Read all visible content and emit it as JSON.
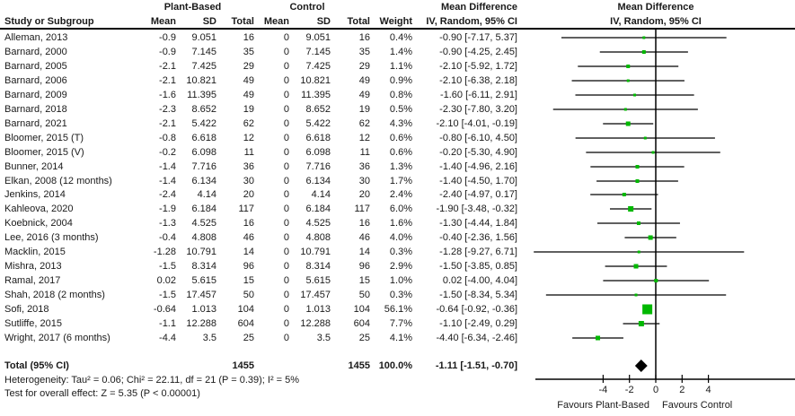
{
  "table": {
    "group_headers": {
      "plant_based": "Plant-Based",
      "control": "Control",
      "md_text_col": "Mean Difference",
      "md_plot_col": "Mean Difference"
    },
    "column_headers": {
      "study": "Study or Subgroup",
      "mean": "Mean",
      "sd": "SD",
      "total": "Total",
      "c_mean": "Mean",
      "c_sd": "SD",
      "c_total": "Total",
      "weight": "Weight",
      "md_sub_text": "IV, Random, 95% CI",
      "md_sub_plot": "IV, Random, 95% CI"
    }
  },
  "chart_data": {
    "type": "forest",
    "effect_measure": "Mean Difference",
    "model": "IV, Random, 95% CI",
    "x_axis": {
      "ticks": [
        -4,
        -2,
        0,
        2,
        4
      ],
      "favours_left": "Favours Plant-Based",
      "favours_right": "Favours Control"
    },
    "studies": [
      {
        "label": "Alleman, 2013",
        "mean": "-0.9",
        "sd": "9.051",
        "total": "16",
        "c_mean": "0",
        "c_sd": "9.051",
        "c_total": "16",
        "weight": "0.4%",
        "md_label": "-0.90 [-7.17, 5.37]",
        "md": -0.9,
        "lo": -7.17,
        "hi": 5.37,
        "w": 0.4
      },
      {
        "label": "Barnard, 2000",
        "mean": "-0.9",
        "sd": "7.145",
        "total": "35",
        "c_mean": "0",
        "c_sd": "7.145",
        "c_total": "35",
        "weight": "1.4%",
        "md_label": "-0.90 [-4.25, 2.45]",
        "md": -0.9,
        "lo": -4.25,
        "hi": 2.45,
        "w": 1.4
      },
      {
        "label": "Barnard, 2005",
        "mean": "-2.1",
        "sd": "7.425",
        "total": "29",
        "c_mean": "0",
        "c_sd": "7.425",
        "c_total": "29",
        "weight": "1.1%",
        "md_label": "-2.10 [-5.92, 1.72]",
        "md": -2.1,
        "lo": -5.92,
        "hi": 1.72,
        "w": 1.1
      },
      {
        "label": "Barnard, 2006",
        "mean": "-2.1",
        "sd": "10.821",
        "total": "49",
        "c_mean": "0",
        "c_sd": "10.821",
        "c_total": "49",
        "weight": "0.9%",
        "md_label": "-2.10 [-6.38, 2.18]",
        "md": -2.1,
        "lo": -6.38,
        "hi": 2.18,
        "w": 0.9
      },
      {
        "label": "Barnard, 2009",
        "mean": "-1.6",
        "sd": "11.395",
        "total": "49",
        "c_mean": "0",
        "c_sd": "11.395",
        "c_total": "49",
        "weight": "0.8%",
        "md_label": "-1.60 [-6.11, 2.91]",
        "md": -1.6,
        "lo": -6.11,
        "hi": 2.91,
        "w": 0.8
      },
      {
        "label": "Barnard, 2018",
        "mean": "-2.3",
        "sd": "8.652",
        "total": "19",
        "c_mean": "0",
        "c_sd": "8.652",
        "c_total": "19",
        "weight": "0.5%",
        "md_label": "-2.30 [-7.80, 3.20]",
        "md": -2.3,
        "lo": -7.8,
        "hi": 3.2,
        "w": 0.5
      },
      {
        "label": "Barnard, 2021",
        "mean": "-2.1",
        "sd": "5.422",
        "total": "62",
        "c_mean": "0",
        "c_sd": "5.422",
        "c_total": "62",
        "weight": "4.3%",
        "md_label": "-2.10 [-4.01, -0.19]",
        "md": -2.1,
        "lo": -4.01,
        "hi": -0.19,
        "w": 4.3
      },
      {
        "label": "Bloomer, 2015 (T)",
        "mean": "-0.8",
        "sd": "6.618",
        "total": "12",
        "c_mean": "0",
        "c_sd": "6.618",
        "c_total": "12",
        "weight": "0.6%",
        "md_label": "-0.80 [-6.10, 4.50]",
        "md": -0.8,
        "lo": -6.1,
        "hi": 4.5,
        "w": 0.6
      },
      {
        "label": "Bloomer, 2015 (V)",
        "mean": "-0.2",
        "sd": "6.098",
        "total": "11",
        "c_mean": "0",
        "c_sd": "6.098",
        "c_total": "11",
        "weight": "0.6%",
        "md_label": "-0.20 [-5.30, 4.90]",
        "md": -0.2,
        "lo": -5.3,
        "hi": 4.9,
        "w": 0.6
      },
      {
        "label": "Bunner, 2014",
        "mean": "-1.4",
        "sd": "7.716",
        "total": "36",
        "c_mean": "0",
        "c_sd": "7.716",
        "c_total": "36",
        "weight": "1.3%",
        "md_label": "-1.40 [-4.96, 2.16]",
        "md": -1.4,
        "lo": -4.96,
        "hi": 2.16,
        "w": 1.3
      },
      {
        "label": "Elkan, 2008 (12 months)",
        "mean": "-1.4",
        "sd": "6.134",
        "total": "30",
        "c_mean": "0",
        "c_sd": "6.134",
        "c_total": "30",
        "weight": "1.7%",
        "md_label": "-1.40 [-4.50, 1.70]",
        "md": -1.4,
        "lo": -4.5,
        "hi": 1.7,
        "w": 1.7
      },
      {
        "label": "Jenkins, 2014",
        "mean": "-2.4",
        "sd": "4.14",
        "total": "20",
        "c_mean": "0",
        "c_sd": "4.14",
        "c_total": "20",
        "weight": "2.4%",
        "md_label": "-2.40 [-4.97, 0.17]",
        "md": -2.4,
        "lo": -4.97,
        "hi": 0.17,
        "w": 2.4
      },
      {
        "label": "Kahleova, 2020",
        "mean": "-1.9",
        "sd": "6.184",
        "total": "117",
        "c_mean": "0",
        "c_sd": "6.184",
        "c_total": "117",
        "weight": "6.0%",
        "md_label": "-1.90 [-3.48, -0.32]",
        "md": -1.9,
        "lo": -3.48,
        "hi": -0.32,
        "w": 6.0
      },
      {
        "label": "Koebnick, 2004",
        "mean": "-1.3",
        "sd": "4.525",
        "total": "16",
        "c_mean": "0",
        "c_sd": "4.525",
        "c_total": "16",
        "weight": "1.6%",
        "md_label": "-1.30 [-4.44, 1.84]",
        "md": -1.3,
        "lo": -4.44,
        "hi": 1.84,
        "w": 1.6
      },
      {
        "label": "Lee, 2016 (3 months)",
        "mean": "-0.4",
        "sd": "4.808",
        "total": "46",
        "c_mean": "0",
        "c_sd": "4.808",
        "c_total": "46",
        "weight": "4.0%",
        "md_label": "-0.40 [-2.36, 1.56]",
        "md": -0.4,
        "lo": -2.36,
        "hi": 1.56,
        "w": 4.0
      },
      {
        "label": "Macklin, 2015",
        "mean": "-1.28",
        "sd": "10.791",
        "total": "14",
        "c_mean": "0",
        "c_sd": "10.791",
        "c_total": "14",
        "weight": "0.3%",
        "md_label": "-1.28 [-9.27, 6.71]",
        "md": -1.28,
        "lo": -9.27,
        "hi": 6.71,
        "w": 0.3
      },
      {
        "label": "Mishra, 2013",
        "mean": "-1.5",
        "sd": "8.314",
        "total": "96",
        "c_mean": "0",
        "c_sd": "8.314",
        "c_total": "96",
        "weight": "2.9%",
        "md_label": "-1.50 [-3.85, 0.85]",
        "md": -1.5,
        "lo": -3.85,
        "hi": 0.85,
        "w": 2.9
      },
      {
        "label": "Ramal, 2017",
        "mean": "0.02",
        "sd": "5.615",
        "total": "15",
        "c_mean": "0",
        "c_sd": "5.615",
        "c_total": "15",
        "weight": "1.0%",
        "md_label": "0.02 [-4.00, 4.04]",
        "md": 0.02,
        "lo": -4.0,
        "hi": 4.04,
        "w": 1.0
      },
      {
        "label": "Shah, 2018 (2 months)",
        "mean": "-1.5",
        "sd": "17.457",
        "total": "50",
        "c_mean": "0",
        "c_sd": "17.457",
        "c_total": "50",
        "weight": "0.3%",
        "md_label": "-1.50 [-8.34, 5.34]",
        "md": -1.5,
        "lo": -8.34,
        "hi": 5.34,
        "w": 0.3
      },
      {
        "label": "Sofi, 2018",
        "mean": "-0.64",
        "sd": "1.013",
        "total": "104",
        "c_mean": "0",
        "c_sd": "1.013",
        "c_total": "104",
        "weight": "56.1%",
        "md_label": "-0.64 [-0.92, -0.36]",
        "md": -0.64,
        "lo": -0.92,
        "hi": -0.36,
        "w": 56.1
      },
      {
        "label": "Sutliffe, 2015",
        "mean": "-1.1",
        "sd": "12.288",
        "total": "604",
        "c_mean": "0",
        "c_sd": "12.288",
        "c_total": "604",
        "weight": "7.7%",
        "md_label": "-1.10 [-2.49, 0.29]",
        "md": -1.1,
        "lo": -2.49,
        "hi": 0.29,
        "w": 7.7
      },
      {
        "label": "Wright, 2017 (6 months)",
        "mean": "-4.4",
        "sd": "3.5",
        "total": "25",
        "c_mean": "0",
        "c_sd": "3.5",
        "c_total": "25",
        "weight": "4.1%",
        "md_label": "-4.40 [-6.34, -2.46]",
        "md": -4.4,
        "lo": -6.34,
        "hi": -2.46,
        "w": 4.1
      }
    ],
    "total": {
      "label": "Total (95% CI)",
      "total": "1455",
      "c_total": "1455",
      "weight": "100.0%",
      "md_label": "-1.11 [-1.51, -0.70]",
      "md": -1.11,
      "lo": -1.51,
      "hi": -0.7
    },
    "footnotes": {
      "heterogeneity": "Heterogeneity: Tau² = 0.06; Chi² = 22.11, df = 21 (P = 0.39); I² = 5%",
      "overall_effect": "Test for overall effect: Z = 5.35 (P < 0.00001)"
    }
  },
  "colors": {
    "square": "#00b800",
    "diamond": "#000000",
    "line": "#000000",
    "text": "#1a1a1a"
  }
}
